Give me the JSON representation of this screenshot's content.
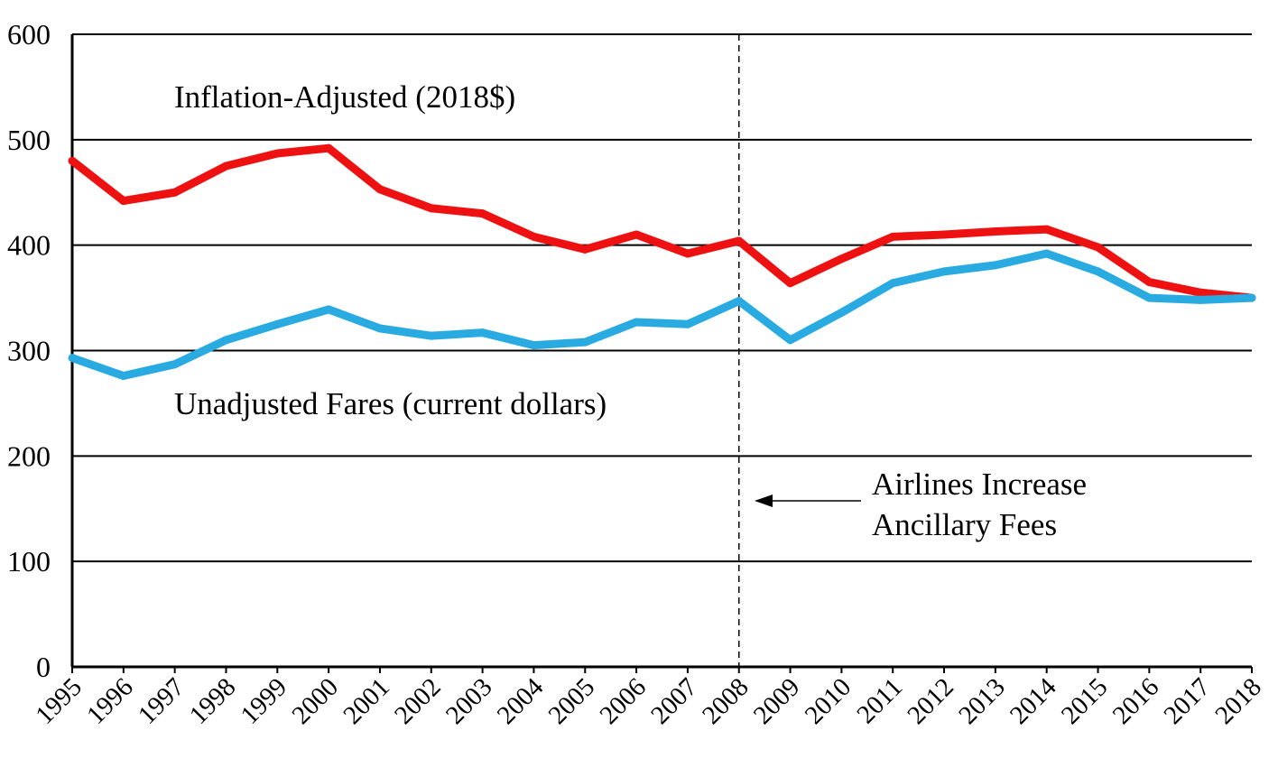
{
  "chart_data": {
    "type": "line",
    "title": "",
    "xlabel": "",
    "ylabel": "",
    "categories": [
      "1995",
      "1996",
      "1997",
      "1998",
      "1999",
      "2000",
      "2001",
      "2002",
      "2003",
      "2004",
      "2005",
      "2006",
      "2007",
      "2008",
      "2009",
      "2010",
      "2011",
      "2012",
      "2013",
      "2014",
      "2015",
      "2016",
      "2017",
      "2018"
    ],
    "ylim": [
      0,
      600
    ],
    "yticks": [
      "0",
      "100",
      "200",
      "300",
      "400",
      "500",
      "600"
    ],
    "grid": true,
    "legend": "none",
    "series": [
      {
        "name": "Inflation-Adjusted (2018$)",
        "color": "#ee1111",
        "values": [
          480,
          442,
          450,
          475,
          487,
          492,
          453,
          435,
          430,
          408,
          396,
          410,
          392,
          404,
          364,
          387,
          408,
          410,
          413,
          415,
          398,
          365,
          355,
          350
        ]
      },
      {
        "name": "Unadjusted Fares (current dollars)",
        "color": "#29abe2",
        "values": [
          293,
          276,
          287,
          310,
          325,
          339,
          321,
          314,
          317,
          305,
          308,
          327,
          325,
          347,
          310,
          336,
          364,
          375,
          381,
          392,
          375,
          350,
          348,
          350
        ]
      }
    ],
    "annotations": {
      "inflation_label": "Inflation-Adjusted (2018$)",
      "unadjusted_label": "Unadjusted Fares (current dollars)",
      "event_year": "2008",
      "event_label_line1": "Airlines Increase",
      "event_label_line2": "Ancillary Fees"
    }
  }
}
